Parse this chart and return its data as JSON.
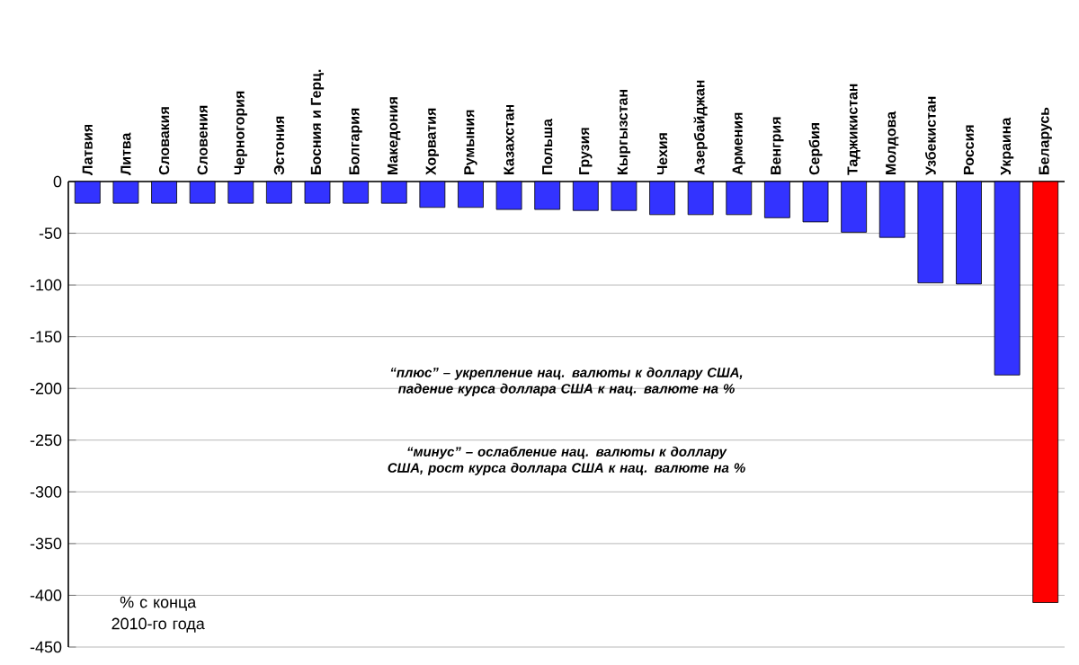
{
  "chart_data": {
    "type": "bar",
    "categories": [
      "Латвия",
      "Литва",
      "Словакия",
      "Словения",
      "Черногория",
      "Эстония",
      "Босния  и Герц.",
      "Болгария",
      "Македония",
      "Хорватия",
      "Румыния",
      "Казахстан",
      "Польша",
      "Грузия",
      "Кыргызстан",
      "Чехия",
      "Азербайджан",
      "Армения",
      "Венгрия",
      "Сербия",
      "Таджикистан",
      "Молдова",
      "Узбекистан",
      "Россия",
      "Украина",
      "Беларусь"
    ],
    "values": [
      -21,
      -21,
      -21,
      -21,
      -21,
      -21,
      -21,
      -21,
      -21,
      -25,
      -25,
      -27,
      -27,
      -28,
      -28,
      -32,
      -32,
      -32,
      -35,
      -39,
      -49,
      -54,
      -98,
      -99,
      -187,
      -407
    ],
    "colors": [
      "#3333ff",
      "#3333ff",
      "#3333ff",
      "#3333ff",
      "#3333ff",
      "#3333ff",
      "#3333ff",
      "#3333ff",
      "#3333ff",
      "#3333ff",
      "#3333ff",
      "#3333ff",
      "#3333ff",
      "#3333ff",
      "#3333ff",
      "#3333ff",
      "#3333ff",
      "#3333ff",
      "#3333ff",
      "#3333ff",
      "#3333ff",
      "#3333ff",
      "#3333ff",
      "#3333ff",
      "#3333ff",
      "#ff0000"
    ],
    "ylim": [
      -450,
      0
    ],
    "yticks": [
      0,
      -50,
      -100,
      -150,
      -200,
      -250,
      -300,
      -350,
      -400,
      -450
    ],
    "grid": "y",
    "annotations": [
      "*“плюс” – укрепление нац. валюты к доллару США, падение курса доллара США к нац. валюте на %*",
      "*“минус” – ослабление нац. валюты к доллару США, рост курса доллара США к нац. валюте на %*",
      "% с конца 2010-го года"
    ]
  }
}
